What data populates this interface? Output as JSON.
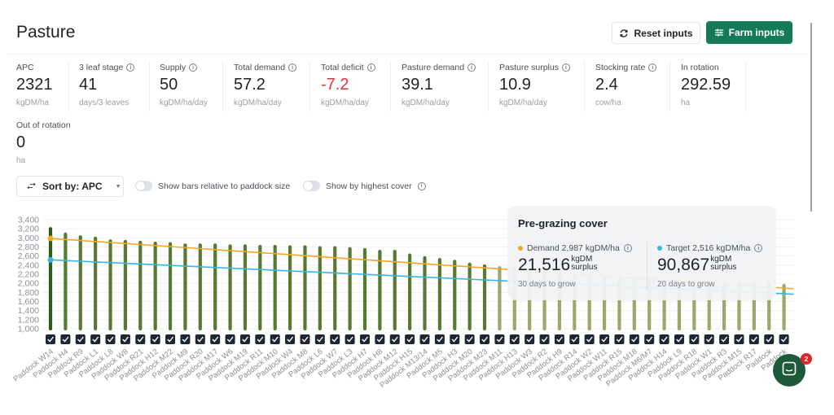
{
  "header": {
    "title": "Pasture",
    "reset_label": "Reset inputs",
    "farm_inputs_label": "Farm inputs",
    "reset_icon": "refresh-icon",
    "farm_inputs_icon": "sliders-icon"
  },
  "stats": [
    {
      "label": "APC",
      "value": "2321",
      "unit": "kgDM/ha",
      "info": false,
      "negative": false
    },
    {
      "label": "3 leaf stage",
      "value": "41",
      "unit": "days/3 leaves",
      "info": true,
      "negative": false
    },
    {
      "label": "Supply",
      "value": "50",
      "unit": "kgDM/ha/day",
      "info": true,
      "negative": false
    },
    {
      "label": "Total demand",
      "value": "57.2",
      "unit": "kgDM/ha/day",
      "info": true,
      "negative": false
    },
    {
      "label": "Total deficit",
      "value": "-7.2",
      "unit": "kgDM/ha/day",
      "info": true,
      "negative": true
    },
    {
      "label": "Pasture demand",
      "value": "39.1",
      "unit": "kgDM/ha/day",
      "info": true,
      "negative": false
    },
    {
      "label": "Pasture surplus",
      "value": "10.9",
      "unit": "kgDM/ha/day",
      "info": true,
      "negative": false
    },
    {
      "label": "Stocking rate",
      "value": "2.4",
      "unit": "cow/ha",
      "info": true,
      "negative": false
    },
    {
      "label": "In rotation",
      "value": "292.59",
      "unit": "ha",
      "info": false,
      "negative": false
    },
    {
      "label": "Out of rotation",
      "value": "0",
      "unit": "ha",
      "info": false,
      "negative": false
    }
  ],
  "controls": {
    "sort_label": "Sort by: APC",
    "toggle_relative_label": "Show bars relative to paddock size",
    "toggle_relative_on": false,
    "toggle_highest_label": "Show by highest cover",
    "toggle_highest_on": false
  },
  "tooltip": {
    "title": "Pre-grazing cover",
    "demand": {
      "label": "Demand 2,987 kgDM/ha",
      "value": "21,516",
      "unit_top": "kgDM",
      "unit_bottom": "surplus",
      "days": "30 days to grow",
      "color": "#f5a623"
    },
    "target": {
      "label": "Target 2,516 kgDM/ha",
      "value": "90,867",
      "unit_top": "kgDM",
      "unit_bottom": "surplus",
      "days": "20 days to grow",
      "color": "#3bb6e0"
    }
  },
  "chat": {
    "badge_count": "2"
  },
  "colors": {
    "brand": "#147a5a",
    "negative": "#e0333a",
    "bar_dark": "#2f5a17",
    "bar_mid": "#567a30",
    "bar_light": "#9aa86a",
    "demand_line": "#f5a623",
    "target_line": "#3bb6e0",
    "checkbox": "#1f2633"
  },
  "chart_data": {
    "type": "bar",
    "title": "",
    "xlabel": "",
    "ylabel": "",
    "ylim": [
      1000,
      3400
    ],
    "yticks": [
      1000,
      1200,
      1400,
      1600,
      1800,
      2000,
      2200,
      2400,
      2600,
      2800,
      3000,
      3200,
      3400
    ],
    "ytick_labels": [
      "1,000",
      "1,200",
      "1,400",
      "1,600",
      "1,800",
      "2,000",
      "2,200",
      "2,400",
      "2,600",
      "2,800",
      "3,000",
      "3,200",
      "3,400"
    ],
    "grid": true,
    "categories": [
      "Paddock W14",
      "Paddock H4",
      "Paddock R9",
      "Paddock L1",
      "Paddock L8",
      "Paddock W8",
      "Paddock R21",
      "Paddock H12",
      "Paddock M22",
      "Paddock M9",
      "Paddock R20",
      "Paddock M17",
      "Paddock W6",
      "Paddock M19",
      "Paddock R11",
      "Paddock M10",
      "Paddock W4",
      "Paddock M8",
      "Paddock L6",
      "Paddock W7",
      "Paddock L3",
      "Paddock H7",
      "Paddock H8",
      "Paddock M12",
      "Paddock H15",
      "Paddock M13/14",
      "Paddock M5",
      "Paddock H3",
      "Paddock M20",
      "Paddock M23",
      "Paddock M11",
      "Paddock H13",
      "Paddock W3",
      "Paddock R2",
      "Paddock H9",
      "Paddock R14",
      "Paddock W2",
      "Paddock W11",
      "Paddock R15",
      "Paddock M18",
      "Paddock M6/M7",
      "Paddock H14",
      "Paddock L9",
      "Paddock R18",
      "Paddock W1",
      "Paddock R3",
      "Paddock M15",
      "Paddock R17",
      "Paddock",
      "Paddock"
    ],
    "series": [
      {
        "name": "APC",
        "values": [
          3200,
          3080,
          3020,
          2990,
          2930,
          2920,
          2900,
          2880,
          2870,
          2840,
          2840,
          2840,
          2820,
          2820,
          2810,
          2810,
          2800,
          2800,
          2780,
          2780,
          2760,
          2740,
          2700,
          2700,
          2620,
          2560,
          2520,
          2480,
          2420,
          2380,
          2340,
          2300,
          2260,
          2230,
          2200,
          2180,
          2160,
          2140,
          2120,
          2100,
          2080,
          2060,
          2050,
          2040,
          2020,
          2010,
          2000,
          1990,
          1980,
          1950
        ]
      },
      {
        "name": "Demand",
        "type": "line",
        "start": 2987,
        "end": 1880
      },
      {
        "name": "Target",
        "type": "line",
        "start": 2516,
        "end": 1760
      }
    ],
    "all_checked": true
  }
}
